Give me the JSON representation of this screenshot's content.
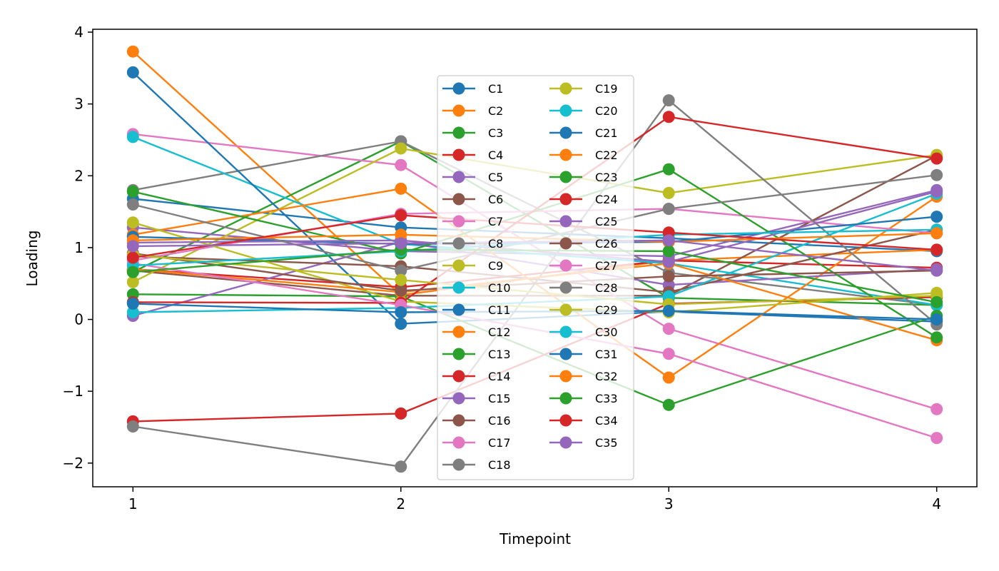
{
  "chart_data": {
    "type": "line",
    "title": "",
    "xlabel": "Timepoint",
    "ylabel": "Loading",
    "x": [
      1,
      2,
      3,
      4
    ],
    "xlim": [
      0.85,
      4.15
    ],
    "ylim": [
      -2.33,
      4.04
    ],
    "xticks": [
      1,
      2,
      3,
      4
    ],
    "xtick_labels": [
      "1",
      "2",
      "3",
      "4"
    ],
    "yticks": [
      -2,
      -1,
      0,
      1,
      2,
      3,
      4
    ],
    "ytick_labels": [
      "−2",
      "−1",
      "0",
      "1",
      "2",
      "3",
      "4"
    ],
    "grid": false,
    "legend": {
      "position": "center",
      "columns": 2
    },
    "series": [
      {
        "name": "C1",
        "color": "#1f77b4",
        "values": [
          1.68,
          1.28,
          1.13,
          0.95
        ]
      },
      {
        "name": "C2",
        "color": "#ff7f0e",
        "values": [
          3.73,
          0.34,
          0.82,
          0.97
        ]
      },
      {
        "name": "C3",
        "color": "#2ca02c",
        "values": [
          0.66,
          2.48,
          0.3,
          0.2
        ]
      },
      {
        "name": "C4",
        "color": "#d62728",
        "values": [
          0.7,
          0.45,
          0.82,
          0.72
        ]
      },
      {
        "name": "C5",
        "color": "#9467bd",
        "values": [
          1.28,
          0.95,
          0.88,
          1.8
        ]
      },
      {
        "name": "C6",
        "color": "#8c564b",
        "values": [
          0.68,
          0.33,
          0.33,
          2.28
        ]
      },
      {
        "name": "C7",
        "color": "#e377c2",
        "values": [
          2.58,
          2.15,
          -0.13,
          -1.25
        ]
      },
      {
        "name": "C8",
        "color": "#7f7f7f",
        "values": [
          1.8,
          2.48,
          0.65,
          0.2
        ]
      },
      {
        "name": "C9",
        "color": "#bcbd22",
        "values": [
          0.52,
          2.38,
          1.76,
          2.29
        ]
      },
      {
        "name": "C10",
        "color": "#17becf",
        "values": [
          2.54,
          1.05,
          0.78,
          0.2
        ]
      },
      {
        "name": "C11",
        "color": "#1f77b4",
        "values": [
          3.44,
          -0.06,
          0.11,
          -0.03
        ]
      },
      {
        "name": "C12",
        "color": "#ff7f0e",
        "values": [
          1.18,
          1.82,
          -0.81,
          1.71
        ]
      },
      {
        "name": "C13",
        "color": "#2ca02c",
        "values": [
          0.35,
          0.32,
          -1.19,
          0.05
        ]
      },
      {
        "name": "C14",
        "color": "#d62728",
        "values": [
          -1.42,
          -1.31,
          0.22,
          0.31
        ]
      },
      {
        "name": "C15",
        "color": "#9467bd",
        "values": [
          0.05,
          1.08,
          0.48,
          0.7
        ]
      },
      {
        "name": "C16",
        "color": "#8c564b",
        "values": [
          0.88,
          0.74,
          0.38,
          1.25
        ]
      },
      {
        "name": "C17",
        "color": "#e377c2",
        "values": [
          0.82,
          1.47,
          1.54,
          1.2
        ]
      },
      {
        "name": "C18",
        "color": "#7f7f7f",
        "values": [
          -1.49,
          -2.05,
          3.05,
          -0.07
        ]
      },
      {
        "name": "C19",
        "color": "#bcbd22",
        "values": [
          1.35,
          0.25,
          0.1,
          0.37
        ]
      },
      {
        "name": "C20",
        "color": "#17becf",
        "values": [
          0.1,
          0.16,
          0.32,
          1.75
        ]
      },
      {
        "name": "C21",
        "color": "#1f77b4",
        "values": [
          1.15,
          1.05,
          1.08,
          1.43
        ]
      },
      {
        "name": "C22",
        "color": "#ff7f0e",
        "values": [
          0.7,
          0.38,
          0.78,
          -0.29
        ]
      },
      {
        "name": "C23",
        "color": "#2ca02c",
        "values": [
          1.78,
          0.92,
          2.09,
          -0.25
        ]
      },
      {
        "name": "C24",
        "color": "#d62728",
        "values": [
          0.24,
          0.23,
          2.82,
          2.24
        ]
      },
      {
        "name": "C25",
        "color": "#9467bd",
        "values": [
          1.07,
          1.1,
          0.8,
          1.78
        ]
      },
      {
        "name": "C26",
        "color": "#8c564b",
        "values": [
          0.92,
          0.4,
          0.6,
          0.68
        ]
      },
      {
        "name": "C27",
        "color": "#e377c2",
        "values": [
          0.78,
          0.2,
          -0.48,
          -1.65
        ]
      },
      {
        "name": "C28",
        "color": "#7f7f7f",
        "values": [
          1.6,
          0.68,
          1.54,
          2.01
        ]
      },
      {
        "name": "C29",
        "color": "#bcbd22",
        "values": [
          0.9,
          0.55,
          0.21,
          0.33
        ]
      },
      {
        "name": "C30",
        "color": "#17becf",
        "values": [
          0.75,
          0.95,
          1.18,
          1.25
        ]
      },
      {
        "name": "C31",
        "color": "#1f77b4",
        "values": [
          0.22,
          0.1,
          0.12,
          0.0
        ]
      },
      {
        "name": "C32",
        "color": "#ff7f0e",
        "values": [
          1.1,
          1.18,
          1.08,
          1.2
        ]
      },
      {
        "name": "C33",
        "color": "#2ca02c",
        "values": [
          0.66,
          0.97,
          0.95,
          0.24
        ]
      },
      {
        "name": "C34",
        "color": "#d62728",
        "values": [
          0.86,
          1.45,
          1.21,
          0.97
        ]
      },
      {
        "name": "C35",
        "color": "#9467bd",
        "values": [
          1.02,
          1.06,
          1.1,
          0.68
        ]
      }
    ]
  }
}
